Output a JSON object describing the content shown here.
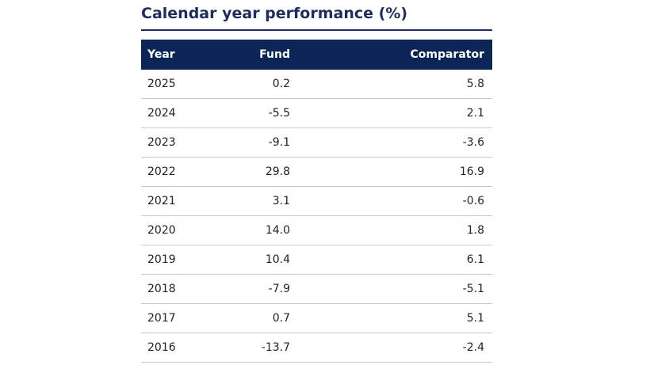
{
  "header": {
    "title": "Calendar year performance (%)"
  },
  "table": {
    "columns": [
      "Year",
      "Fund",
      "Comparator"
    ],
    "rows": [
      [
        "2025",
        "0.2",
        "5.8"
      ],
      [
        "2024",
        "-5.5",
        "2.1"
      ],
      [
        "2023",
        "-9.1",
        "-3.6"
      ],
      [
        "2022",
        "29.8",
        "16.9"
      ],
      [
        "2021",
        "3.1",
        "-0.6"
      ],
      [
        "2020",
        "14.0",
        "1.8"
      ],
      [
        "2019",
        "10.4",
        "6.1"
      ],
      [
        "2018",
        "-7.9",
        "-5.1"
      ],
      [
        "2017",
        "0.7",
        "5.1"
      ],
      [
        "2016",
        "-13.7",
        "-2.4"
      ]
    ]
  }
}
